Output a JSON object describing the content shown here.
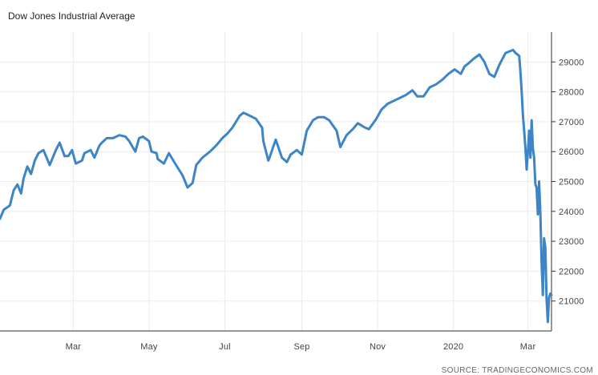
{
  "chart_data": {
    "type": "line",
    "title": "Dow Jones Industrial Average",
    "source": "SOURCE: TRADINGECONOMICS.COM",
    "ylim": [
      20000,
      30000
    ],
    "yticks": [
      21000,
      22000,
      23000,
      24000,
      25000,
      26000,
      27000,
      28000,
      29000
    ],
    "ytick_labels": [
      "21000",
      "22000",
      "23000",
      "24000",
      "25000",
      "26000",
      "27000",
      "28000",
      "29000"
    ],
    "xlim": [
      "2019-01-01",
      "2020-03-20"
    ],
    "xticks": [
      "2019-03-01",
      "2019-05-01",
      "2019-07-01",
      "2019-09-01",
      "2019-11-01",
      "2020-01-01",
      "2020-03-01"
    ],
    "xtick_labels": [
      "Mar",
      "May",
      "Jul",
      "Sep",
      "Nov",
      "2020",
      "Mar"
    ],
    "grid": true,
    "colors": {
      "line": "#3d85c6",
      "grid": "#ececec",
      "axis": "#333333"
    },
    "series": [
      {
        "x": [
          "2019-01-01",
          "2019-01-04",
          "2019-01-09",
          "2019-01-12",
          "2019-01-15",
          "2019-01-18",
          "2019-01-20",
          "2019-01-23",
          "2019-01-26",
          "2019-01-29",
          "2019-02-01",
          "2019-02-05",
          "2019-02-10",
          "2019-02-15",
          "2019-02-18",
          "2019-02-22",
          "2019-02-25",
          "2019-02-28",
          "2019-03-03",
          "2019-03-08",
          "2019-03-10",
          "2019-03-15",
          "2019-03-18",
          "2019-03-22",
          "2019-03-24",
          "2019-03-28",
          "2019-04-02",
          "2019-04-07",
          "2019-04-12",
          "2019-04-15",
          "2019-04-20",
          "2019-04-23",
          "2019-04-26",
          "2019-05-01",
          "2019-05-03",
          "2019-05-07",
          "2019-05-08",
          "2019-05-13",
          "2019-05-17",
          "2019-05-22",
          "2019-05-28",
          "2019-06-01",
          "2019-06-05",
          "2019-06-08",
          "2019-06-13",
          "2019-06-19",
          "2019-06-24",
          "2019-06-29",
          "2019-07-03",
          "2019-07-07",
          "2019-07-13",
          "2019-07-16",
          "2019-07-21",
          "2019-07-26",
          "2019-07-31",
          "2019-08-01",
          "2019-08-05",
          "2019-08-06",
          "2019-08-08",
          "2019-08-11",
          "2019-08-16",
          "2019-08-20",
          "2019-08-23",
          "2019-08-28",
          "2019-09-01",
          "2019-09-05",
          "2019-09-10",
          "2019-09-14",
          "2019-09-19",
          "2019-09-23",
          "2019-09-29",
          "2019-10-02",
          "2019-10-07",
          "2019-10-12",
          "2019-10-16",
          "2019-10-22",
          "2019-10-25",
          "2019-10-31",
          "2019-11-04",
          "2019-11-09",
          "2019-11-14",
          "2019-11-19",
          "2019-11-24",
          "2019-11-29",
          "2019-12-03",
          "2019-12-08",
          "2019-12-13",
          "2019-12-18",
          "2019-12-23",
          "2019-12-28",
          "2020-01-02",
          "2020-01-07",
          "2020-01-10",
          "2020-01-13",
          "2020-01-17",
          "2020-01-22",
          "2020-01-26",
          "2020-01-30",
          "2020-02-03",
          "2020-02-07",
          "2020-02-12",
          "2020-02-15",
          "2020-02-18",
          "2020-02-20",
          "2020-02-23",
          "2020-02-24",
          "2020-02-25",
          "2020-02-26",
          "2020-02-27",
          "2020-02-28",
          "2020-02-29",
          "2020-03-01",
          "2020-03-02",
          "2020-03-03",
          "2020-03-04",
          "2020-03-05",
          "2020-03-06",
          "2020-03-07",
          "2020-03-08",
          "2020-03-09",
          "2020-03-10",
          "2020-03-11",
          "2020-03-12",
          "2020-03-13",
          "2020-03-14",
          "2020-03-15",
          "2020-03-16",
          "2020-03-17",
          "2020-03-18",
          "2020-03-19",
          "2020-03-20"
        ],
        "values": [
          23750,
          24050,
          24200,
          24700,
          24900,
          24600,
          25100,
          25500,
          25250,
          25700,
          25950,
          26050,
          25550,
          26050,
          26300,
          25850,
          25850,
          26050,
          25600,
          25700,
          25950,
          26050,
          25800,
          26200,
          26300,
          26450,
          26450,
          26550,
          26500,
          26350,
          26000,
          26450,
          26500,
          26350,
          26000,
          25950,
          25750,
          25600,
          25950,
          25600,
          25200,
          24800,
          24950,
          25550,
          25800,
          26000,
          26200,
          26450,
          26600,
          26800,
          27200,
          27300,
          27200,
          27100,
          26800,
          26350,
          25700,
          25800,
          26050,
          26400,
          25800,
          25650,
          25900,
          26050,
          25900,
          26700,
          27050,
          27150,
          27150,
          27050,
          26700,
          26150,
          26550,
          26750,
          26950,
          26800,
          26750,
          27100,
          27400,
          27600,
          27700,
          27800,
          27900,
          28050,
          27850,
          27850,
          28150,
          28250,
          28400,
          28600,
          28750,
          28600,
          28850,
          28950,
          29100,
          29250,
          29000,
          28600,
          28500,
          28900,
          29300,
          29350,
          29400,
          29300,
          29200,
          28650,
          28000,
          27200,
          26700,
          26100,
          25400,
          26000,
          26700,
          25800,
          27050,
          26100,
          25800,
          24900,
          24800,
          23900,
          25000,
          23950,
          22300,
          21200,
          23100,
          22800,
          21100,
          20300,
          21100,
          21250,
          21200
        ]
      }
    ]
  }
}
